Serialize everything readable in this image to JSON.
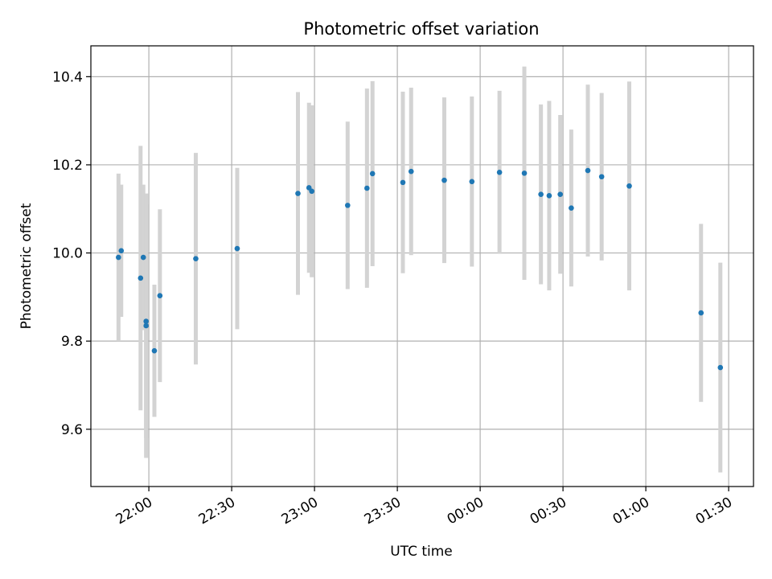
{
  "chart_data": {
    "type": "scatter",
    "title": "Photometric offset variation",
    "xlabel": "UTC time",
    "ylabel": "Photometric offset",
    "x_ticks": [
      "22:00",
      "22:30",
      "23:00",
      "23:30",
      "00:00",
      "00:30",
      "01:00",
      "01:30"
    ],
    "y_ticks": [
      "9.6",
      "9.8",
      "10.0",
      "10.2",
      "10.4"
    ],
    "xlim": [
      "21:39",
      "01:39"
    ],
    "ylim": [
      9.47,
      10.47
    ],
    "grid": true,
    "colors": {
      "point": "#1f77b4",
      "errorbar": "#d3d3d3",
      "grid": "#b0b0b0"
    },
    "points": [
      {
        "x": "21:49",
        "y": 9.99,
        "err": 0.19
      },
      {
        "x": "21:50",
        "y": 10.005,
        "err": 0.15
      },
      {
        "x": "21:57",
        "y": 9.943,
        "err": 0.3
      },
      {
        "x": "21:58",
        "y": 9.99,
        "err": 0.165
      },
      {
        "x": "21:59",
        "y": 9.835,
        "err": 0.3
      },
      {
        "x": "21:59",
        "y": 9.845,
        "err": 0.265
      },
      {
        "x": "22:02",
        "y": 9.778,
        "err": 0.15
      },
      {
        "x": "22:04",
        "y": 9.903,
        "err": 0.196
      },
      {
        "x": "22:17",
        "y": 9.987,
        "err": 0.24
      },
      {
        "x": "22:32",
        "y": 10.01,
        "err": 0.183
      },
      {
        "x": "22:54",
        "y": 10.135,
        "err": 0.23
      },
      {
        "x": "22:58",
        "y": 10.148,
        "err": 0.193
      },
      {
        "x": "22:59",
        "y": 10.14,
        "err": 0.195
      },
      {
        "x": "23:12",
        "y": 10.108,
        "err": 0.19
      },
      {
        "x": "23:19",
        "y": 10.147,
        "err": 0.226
      },
      {
        "x": "23:21",
        "y": 10.18,
        "err": 0.21
      },
      {
        "x": "23:32",
        "y": 10.16,
        "err": 0.206
      },
      {
        "x": "23:35",
        "y": 10.185,
        "err": 0.19
      },
      {
        "x": "23:47",
        "y": 10.165,
        "err": 0.188
      },
      {
        "x": "23:57",
        "y": 10.162,
        "err": 0.193
      },
      {
        "x": "00:07",
        "y": 10.183,
        "err": 0.185
      },
      {
        "x": "00:16",
        "y": 10.181,
        "err": 0.242
      },
      {
        "x": "00:22",
        "y": 10.133,
        "err": 0.204
      },
      {
        "x": "00:25",
        "y": 10.13,
        "err": 0.215
      },
      {
        "x": "00:29",
        "y": 10.133,
        "err": 0.18
      },
      {
        "x": "00:33",
        "y": 10.102,
        "err": 0.178
      },
      {
        "x": "00:39",
        "y": 10.187,
        "err": 0.195
      },
      {
        "x": "00:44",
        "y": 10.173,
        "err": 0.19
      },
      {
        "x": "00:54",
        "y": 10.152,
        "err": 0.237
      },
      {
        "x": "01:20",
        "y": 9.864,
        "err": 0.202
      },
      {
        "x": "01:27",
        "y": 9.74,
        "err": 0.238
      }
    ]
  }
}
